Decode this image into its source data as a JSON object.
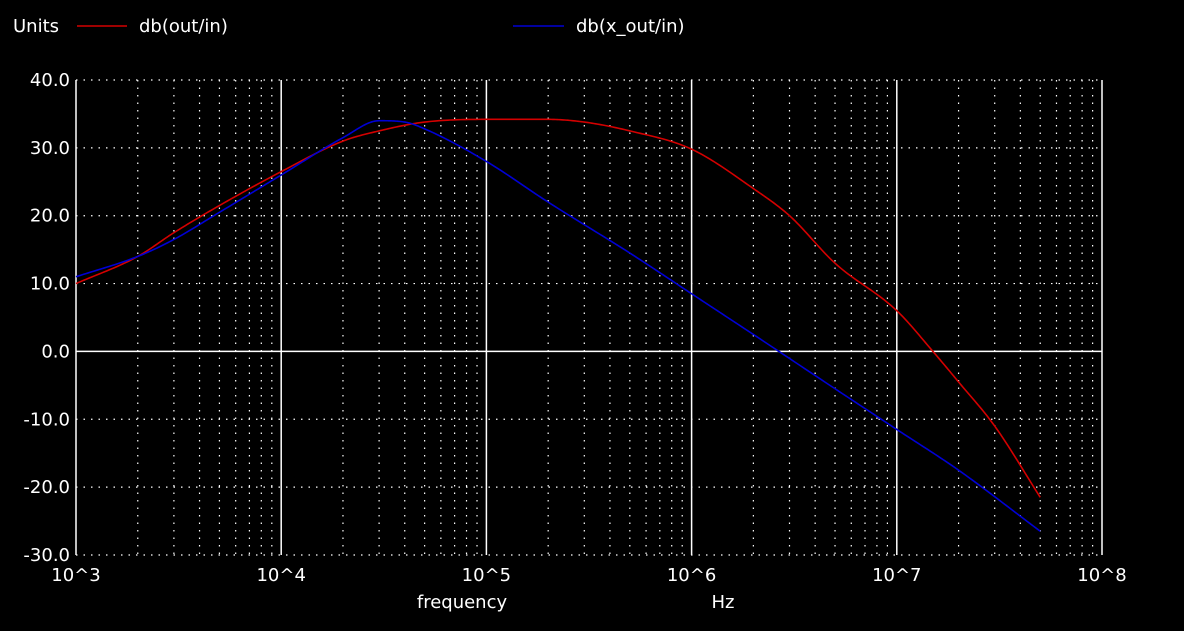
{
  "chart_data": {
    "type": "line",
    "units_label": "Units",
    "xlabel": "frequency",
    "xunit": "Hz",
    "xscale": "log",
    "xlim": [
      1000,
      100000000
    ],
    "ylim": [
      -30,
      40
    ],
    "grid": true,
    "legend_position": "top",
    "x_tick_labels": [
      "10^3",
      "10^4",
      "10^5",
      "10^6",
      "10^7",
      "10^8"
    ],
    "y_tick_labels": [
      "40.0",
      "30.0",
      "20.0",
      "10.0",
      "0.0",
      "-10.0",
      "-20.0",
      "-30.0"
    ],
    "colors": {
      "background": "#000000",
      "grid": "#ffffff",
      "series1": "#d40000",
      "series2": "#0000d4"
    },
    "series": [
      {
        "name": "db(out/in)",
        "x": [
          1000,
          2000,
          3000,
          5000,
          10000,
          20000,
          30000,
          50000,
          100000,
          200000,
          300000,
          500000,
          1000000,
          2000000,
          3000000,
          5000000,
          10000000,
          15000000,
          20000000,
          30000000,
          50000000
        ],
        "y": [
          10.0,
          14.0,
          17.5,
          21.5,
          26.5,
          31.0,
          32.5,
          33.8,
          34.2,
          34.2,
          33.8,
          32.5,
          29.8,
          24.0,
          20.0,
          13.0,
          6.0,
          0.0,
          -4.5,
          -11.0,
          -21.5
        ]
      },
      {
        "name": "db(x_out/in)",
        "x": [
          1000,
          2000,
          3000,
          5000,
          10000,
          20000,
          30000,
          40000,
          50000,
          100000,
          200000,
          500000,
          1000000,
          2000000,
          5000000,
          10000000,
          20000000,
          50000000
        ],
        "y": [
          11.0,
          14.0,
          16.5,
          20.5,
          26.0,
          31.5,
          34.0,
          33.8,
          32.8,
          28.0,
          22.0,
          14.5,
          8.5,
          2.5,
          -5.5,
          -11.5,
          -17.5,
          -26.5
        ]
      }
    ]
  }
}
